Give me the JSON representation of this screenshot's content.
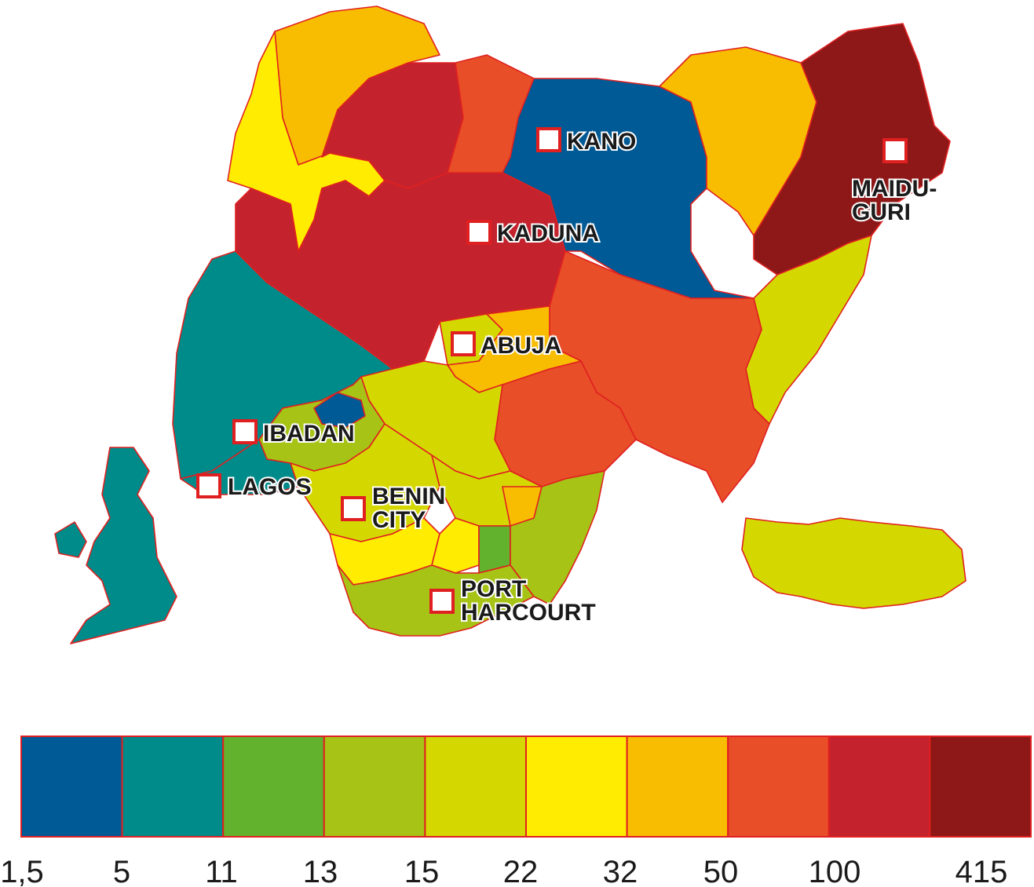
{
  "legend": {
    "colors": [
      "#005a96",
      "#008b8b",
      "#63b22e",
      "#a6c316",
      "#d4d800",
      "#ffec00",
      "#f8bc00",
      "#e84e28",
      "#c4232e",
      "#8e1818"
    ],
    "ticks": [
      "1,5",
      "5",
      "11",
      "13",
      "15",
      "22",
      "32",
      "50",
      "100",
      "415"
    ]
  },
  "cities": {
    "kano": "KANO",
    "kaduna": "KADUNA",
    "maiduguri": [
      "MAIDU-",
      "GURI"
    ],
    "abuja": "ABUJA",
    "ibadan": "IBADAN",
    "lagos": "LAGOS",
    "benin_city": [
      "BENIN",
      "CITY"
    ],
    "port_harcourt": [
      "PORT",
      "HARCOURT"
    ]
  },
  "colors": {
    "border": "#e02020",
    "marker_fill": "#ffffff",
    "marker_stroke": "#e02020"
  }
}
